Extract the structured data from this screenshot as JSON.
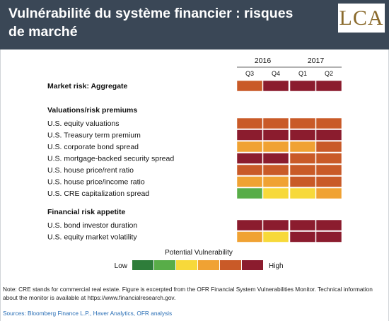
{
  "header": {
    "title": "Vulnérabilité du système financier : risques de marché",
    "logo": "LCA"
  },
  "colors": {
    "1": "#2e7d3a",
    "2": "#58ad48",
    "3": "#f7d93a",
    "4": "#f0a233",
    "5": "#c95a28",
    "6": "#8b1c2e"
  },
  "chart_data": {
    "type": "heatmap",
    "title": "",
    "years": [
      {
        "label": "2016",
        "quarters": [
          "Q3",
          "Q4"
        ]
      },
      {
        "label": "2017",
        "quarters": [
          "Q1",
          "Q2"
        ]
      }
    ],
    "columns": [
      "Q3",
      "Q4",
      "Q1",
      "Q2"
    ],
    "scale": {
      "min": 1,
      "max": 6,
      "levels": [
        1,
        2,
        3,
        4,
        5,
        6
      ]
    },
    "groups": [
      {
        "heading": "",
        "rows": [
          {
            "label": "Market risk: Aggregate",
            "bold": true,
            "values": [
              5,
              6,
              6,
              6
            ]
          }
        ]
      },
      {
        "heading": "Valuations/risk premiums",
        "rows": [
          {
            "label": "U.S. equity valuations",
            "values": [
              5,
              5,
              5,
              5
            ]
          },
          {
            "label": "U.S. Treasury term premium",
            "values": [
              6,
              6,
              6,
              6
            ]
          },
          {
            "label": "U.S. corporate bond spread",
            "values": [
              4,
              4,
              4,
              5
            ]
          },
          {
            "label": "U.S. mortgage-backed security spread",
            "values": [
              6,
              6,
              5,
              5
            ]
          },
          {
            "label": "U.S. house price/rent ratio",
            "values": [
              5,
              5,
              5,
              5
            ]
          },
          {
            "label": "U.S. house price/income ratio",
            "values": [
              4,
              4,
              5,
              5
            ]
          },
          {
            "label": "U.S. CRE capitalization spread",
            "values": [
              2,
              3,
              3,
              4
            ]
          }
        ]
      },
      {
        "heading": "Financial risk appetite",
        "rows": [
          {
            "label": "U.S. bond investor duration",
            "values": [
              6,
              6,
              6,
              6
            ]
          },
          {
            "label": "U.S. equity market volatility",
            "values": [
              4,
              3,
              6,
              6
            ]
          }
        ]
      }
    ],
    "legend": {
      "title": "Potential Vulnerability",
      "low": "Low",
      "high": "High",
      "levels": [
        1,
        2,
        3,
        4,
        5,
        6
      ]
    }
  },
  "note": "Note: CRE stands for commercial real estate. Figure is excerpted from the OFR Financial System Vulnerabilities Monitor. Technical information about the monitor is available at https://www.financialresearch.gov.",
  "sources": "Sources: Bloomberg Finance L.P., Haver Analytics, OFR analysis"
}
